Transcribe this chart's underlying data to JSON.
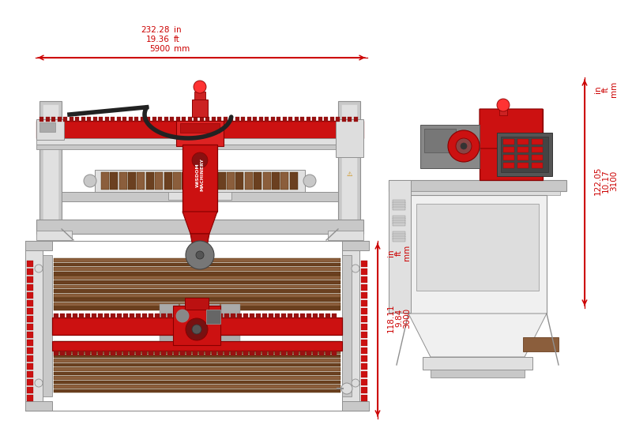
{
  "bg_color": "#ffffff",
  "red": "#cc1111",
  "darkred": "#880000",
  "silver": "#c8c8c8",
  "lightsilver": "#e0e0e0",
  "darksilver": "#909090",
  "verydark": "#555555",
  "charcoal": "#333333",
  "brown": "#8B5E3C",
  "darkbrown": "#6B4020",
  "gray": "#999999",
  "lightgray": "#dddddd",
  "nearwhite": "#f0f0f0",
  "dim1": {
    "val": "232.28",
    "unit1": "in",
    "val2": "19.36",
    "unit2": "ft",
    "val3": "5900",
    "unit3": "mm"
  },
  "dim2": {
    "val": "122.05",
    "unit1": "in",
    "val2": "10.17",
    "unit2": "ft",
    "val3": "3100",
    "unit3": "mm"
  },
  "dim3": {
    "val": "118.11",
    "unit1": "in",
    "val2": "9.84",
    "unit2": "ft",
    "val3": "3000",
    "unit3": "mm"
  }
}
